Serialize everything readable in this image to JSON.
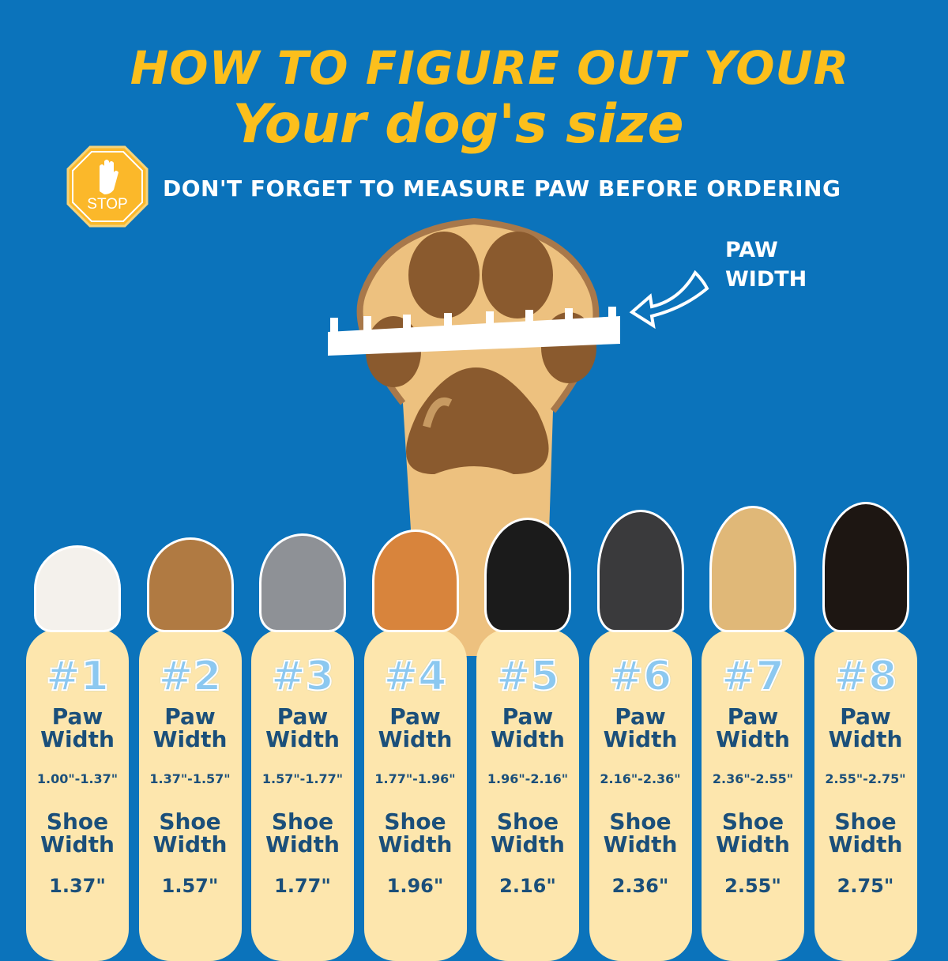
{
  "header": {
    "title_line1": "HOW TO FIGURE OUT YOUR",
    "title_line2": "Your dog's size",
    "stop_sign_text": "STOP",
    "subtitle": "DON'T FORGET TO MEASURE PAW BEFORE ORDERING"
  },
  "diagram": {
    "paw_width_label_line1": "PAW",
    "paw_width_label_line2": "WIDTH"
  },
  "colors": {
    "background": "#0b73bb",
    "title": "#fcbf1c",
    "card": "#fde6ad",
    "card_text": "#1b4f7a"
  },
  "sizes": [
    {
      "number": "#1",
      "paw_label1": "Paw",
      "paw_label2": "Width",
      "paw_range": "1.00\"-1.37\"",
      "shoe_label1": "Shoe",
      "shoe_label2": "Width",
      "shoe_width": "1.37\"",
      "dog": "maltese"
    },
    {
      "number": "#2",
      "paw_label1": "Paw",
      "paw_label2": "Width",
      "paw_range": "1.37\"-1.57\"",
      "shoe_label1": "Shoe",
      "shoe_label2": "Width",
      "shoe_width": "1.57\"",
      "dog": "yorkshire-terrier"
    },
    {
      "number": "#3",
      "paw_label1": "Paw",
      "paw_label2": "Width",
      "paw_range": "1.57\"-1.77\"",
      "shoe_label1": "Shoe",
      "shoe_label2": "Width",
      "shoe_width": "1.77\"",
      "dog": "bearded-collie"
    },
    {
      "number": "#4",
      "paw_label1": "Paw",
      "paw_label2": "Width",
      "paw_range": "1.77\"-1.96\"",
      "shoe_label1": "Shoe",
      "shoe_label2": "Width",
      "shoe_width": "1.96\"",
      "dog": "shiba-inu"
    },
    {
      "number": "#5",
      "paw_label1": "Paw",
      "paw_label2": "Width",
      "paw_range": "1.96\"-2.16\"",
      "shoe_label1": "Shoe",
      "shoe_label2": "Width",
      "shoe_width": "2.16\"",
      "dog": "border-collie"
    },
    {
      "number": "#6",
      "paw_label1": "Paw",
      "paw_label2": "Width",
      "paw_range": "2.16\"-2.36\"",
      "shoe_label1": "Shoe",
      "shoe_label2": "Width",
      "shoe_width": "2.36\"",
      "dog": "husky"
    },
    {
      "number": "#7",
      "paw_label1": "Paw",
      "paw_label2": "Width",
      "paw_range": "2.36\"-2.55\"",
      "shoe_label1": "Shoe",
      "shoe_label2": "Width",
      "shoe_width": "2.55\"",
      "dog": "golden-retriever"
    },
    {
      "number": "#8",
      "paw_label1": "Paw",
      "paw_label2": "Width",
      "paw_range": "2.55\"-2.75\"",
      "shoe_label1": "Shoe",
      "shoe_label2": "Width",
      "shoe_width": "2.75\"",
      "dog": "rottweiler"
    }
  ]
}
